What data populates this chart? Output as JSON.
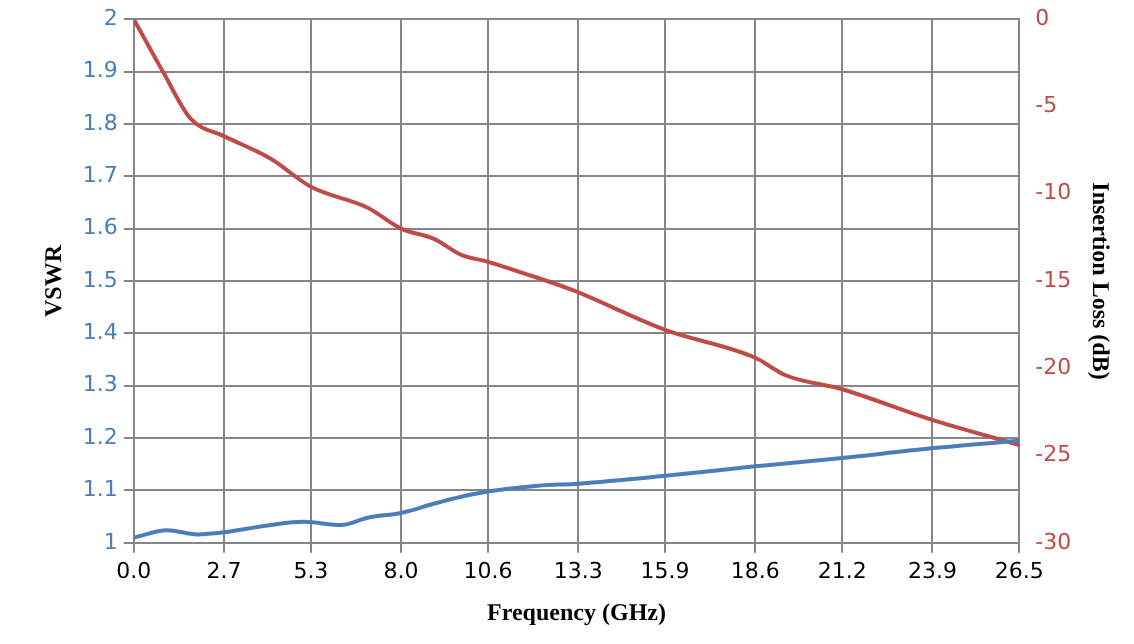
{
  "chart_data": {
    "type": "line",
    "xlabel": "Frequency (GHz)",
    "ylabel": "VSWR",
    "y2label": "Insertion Loss (dB)",
    "xlim": [
      0,
      26.5
    ],
    "xticks": [
      {
        "value": 0,
        "label": "0.0"
      },
      2.7,
      5.3,
      {
        "value": 8,
        "label": "8.0"
      },
      10.6,
      13.3,
      15.9,
      18.6,
      21.2,
      23.9,
      26.5
    ],
    "ylim": [
      1,
      2
    ],
    "yticks": [
      1,
      1.1,
      1.2,
      1.3,
      1.4,
      1.5,
      1.6,
      1.7,
      1.8,
      1.9,
      2
    ],
    "y2lim": [
      -30,
      0
    ],
    "y2ticks": [
      -30,
      -25,
      -20,
      -15,
      -10,
      -5,
      0
    ],
    "grid": true,
    "legend": false,
    "marker": "none",
    "line_style": "solid",
    "series": [
      {
        "color": "#4a7ebb",
        "x": [
          0,
          1.0,
          1.9,
          2.7,
          4.1,
          5.1,
          6.2,
          7.0,
          8.0,
          9.0,
          9.8,
          10.6,
          12.1,
          13.3,
          15.9,
          18.6,
          21.2,
          23.8,
          26.5
        ],
        "values": [
          1.01,
          1.024,
          1.016,
          1.02,
          1.034,
          1.04,
          1.034,
          1.048,
          1.057,
          1.075,
          1.088,
          1.098,
          1.109,
          1.113,
          1.128,
          1.146,
          1.162,
          1.18,
          1.195
        ]
      },
      {
        "color": "#be4b48",
        "axis": "y2",
        "x": [
          0,
          0.9,
          1.7,
          2.7,
          4.1,
          5.3,
          7.0,
          8.0,
          9.0,
          9.8,
          10.6,
          11.9,
          13.1,
          15.9,
          18.6,
          19.5,
          21.2,
          23.8,
          26.5
        ],
        "values": [
          0,
          -3.1,
          -5.7,
          -6.7,
          -8.0,
          -9.6,
          -10.8,
          -12.0,
          -12.6,
          -13.5,
          -13.9,
          -14.7,
          -15.5,
          -17.8,
          -19.4,
          -20.4,
          -21.2,
          -22.9,
          -24.4
        ]
      }
    ]
  }
}
